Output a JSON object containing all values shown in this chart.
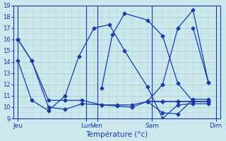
{
  "xlabel": "Température (°c)",
  "ylim": [
    9,
    19
  ],
  "yticks": [
    9,
    10,
    11,
    12,
    13,
    14,
    15,
    16,
    17,
    18,
    19
  ],
  "xlim": [
    -0.3,
    13.3
  ],
  "day_tick_positions": [
    0,
    4.5,
    5.2,
    8.8,
    13.0
  ],
  "day_labels": [
    "Jeu",
    "Lun",
    "Ven",
    "Sam",
    "Dim"
  ],
  "vline_positions": [
    0,
    4.5,
    5.2,
    8.8,
    13.0
  ],
  "background_color": "#cce8ec",
  "grid_color": "#aacdd4",
  "line_color": "#1a3aaa",
  "marker": "D",
  "marker_size": 2.5,
  "lines": [
    {
      "x": [
        0,
        0.9,
        2.0,
        3.1,
        4.2,
        5.5,
        6.5,
        7.5,
        8.5,
        9.5,
        10.5,
        11.5,
        12.5
      ],
      "y": [
        16,
        14.1,
        10.6,
        10.6,
        10.6,
        10.2,
        10.2,
        10.2,
        10.5,
        10.5,
        10.5,
        10.5,
        10.5
      ]
    },
    {
      "x": [
        0,
        0.9,
        2.0,
        3.1,
        4.2,
        5.5,
        6.5,
        7.5,
        8.5,
        9.5,
        10.5,
        11.5,
        12.5
      ],
      "y": [
        16,
        14.1,
        10.0,
        9.8,
        10.3,
        10.2,
        10.1,
        10.0,
        10.5,
        10.5,
        10.5,
        10.5,
        10.5
      ]
    },
    {
      "x": [
        0,
        0.9,
        2.0,
        3.1,
        4.0,
        5.0,
        6.0,
        7.0,
        8.5,
        9.5,
        10.5,
        11.5,
        12.5
      ],
      "y": [
        14.1,
        10.6,
        9.7,
        11.0,
        14.5,
        17.0,
        17.3,
        15.0,
        11.8,
        9.0,
        10.2,
        10.3,
        10.3
      ]
    },
    {
      "x": [
        5.5,
        6.2,
        7.0,
        8.5,
        9.5,
        10.5,
        11.5,
        12.5
      ],
      "y": [
        11.7,
        16.4,
        18.3,
        17.7,
        16.3,
        12.1,
        10.5,
        10.5
      ]
    },
    {
      "x": [
        8.5,
        9.5,
        10.5,
        11.5,
        12.5
      ],
      "y": [
        10.5,
        9.5,
        9.4,
        10.7,
        10.7
      ]
    },
    {
      "x": [
        8.5,
        9.5,
        10.5,
        11.5,
        12.5
      ],
      "y": [
        10.5,
        12.0,
        17.0,
        18.6,
        12.2
      ]
    },
    {
      "x": [
        11.5,
        12.5
      ],
      "y": [
        17.0,
        12.2
      ]
    }
  ]
}
